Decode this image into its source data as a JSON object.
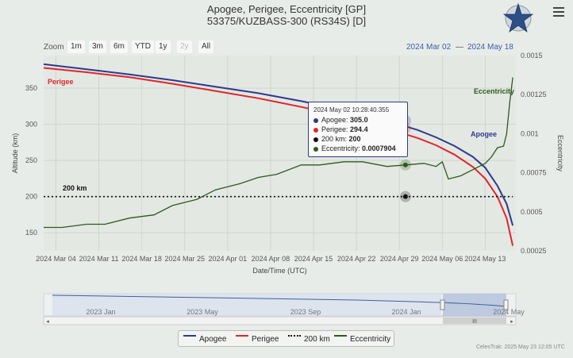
{
  "header": {
    "title_line1": "Apogee, Perigee, Eccentricity [GP]",
    "title_line2": "53375/KUZBASS-300 (RS34S) [D]"
  },
  "zoom": {
    "label": "Zoom",
    "buttons": [
      "1m",
      "3m",
      "6m",
      "YTD",
      "1y",
      "2y",
      "All"
    ]
  },
  "range": {
    "from": "2024 Mar 02",
    "to": "2024 May 18"
  },
  "tooltip": {
    "date": "2024 May 02 10:28:40.355",
    "apogee_label": "Apogee:",
    "apogee_value": "305.0",
    "perigee_label": "Perigee:",
    "perigee_value": "294.4",
    "ref_label": "200 km:",
    "ref_value": "200",
    "ecc_label": "Eccentricity:",
    "ecc_value": "0.0007904"
  },
  "navigator": {
    "labels": [
      "2023 Jan",
      "2023 May",
      "2023 Sep",
      "2024 Jan",
      "2024 May"
    ],
    "handle_label": "III"
  },
  "legend": [
    "Apogee",
    "Perigee",
    "200 km",
    "Eccentricity"
  ],
  "credit": "CelesTrak: 2025 May 23 12:05 UTC",
  "colors": {
    "apogee": "#2d3a8c",
    "perigee": "#e0262b",
    "ref": "#111111",
    "eccentricity": "#2e5a1c"
  },
  "chart_data": {
    "type": "line",
    "title": "Apogee, Perigee, Eccentricity [GP]",
    "subtitle": "53375/KUZBASS-300 (RS34S) [D]",
    "xlabel": "Date/Time (UTC)",
    "ylabel": "Altitude (km)",
    "y2label": "Eccentricity",
    "x_ticks": [
      "2024 Mar 04",
      "2024 Mar 11",
      "2024 Mar 18",
      "2024 Mar 25",
      "2024 Apr 01",
      "2024 Apr 08",
      "2024 Apr 15",
      "2024 Apr 22",
      "2024 Apr 29",
      "2024 May 06",
      "2024 May 13"
    ],
    "y_ticks": [
      150,
      200,
      250,
      300,
      350
    ],
    "y2_ticks": [
      "0.00025",
      "0.0005",
      "0.00075",
      "0.001",
      "0.00125",
      "0.0015"
    ],
    "ylim": [
      125,
      395
    ],
    "y2lim": [
      0.00025,
      0.0015
    ],
    "xlim_days": [
      0,
      77
    ],
    "series": [
      {
        "name": "Apogee",
        "axis": "left",
        "x": [
          0,
          7,
          14,
          21,
          28,
          35,
          42,
          49,
          56,
          61,
          64,
          67,
          70,
          72,
          74,
          75.5,
          76.5
        ],
        "y": [
          383,
          376,
          369,
          361,
          352,
          343,
          332,
          320,
          305,
          292,
          282,
          270,
          255,
          240,
          215,
          190,
          160
        ]
      },
      {
        "name": "Perigee",
        "axis": "left",
        "x": [
          0,
          7,
          14,
          21,
          28,
          35,
          42,
          49,
          56,
          61,
          64,
          67,
          70,
          72,
          74,
          75.5,
          76.5
        ],
        "y": [
          378,
          372,
          365,
          356,
          346,
          336,
          324,
          311,
          294,
          281,
          271,
          258,
          241,
          225,
          200,
          170,
          132
        ]
      },
      {
        "name": "200 km",
        "axis": "left",
        "x": [
          0,
          76.5
        ],
        "y": [
          200,
          200
        ]
      },
      {
        "name": "Eccentricity",
        "axis": "right",
        "x": [
          0,
          3,
          7,
          10,
          14,
          18,
          21,
          25,
          28,
          32,
          35,
          38,
          42,
          45,
          49,
          52,
          56,
          59,
          62,
          64,
          65,
          66,
          68,
          70,
          72,
          73,
          74,
          75,
          75.5,
          76,
          76.5
        ],
        "y": [
          0.0004,
          0.0004,
          0.00042,
          0.00042,
          0.00046,
          0.00048,
          0.00054,
          0.00058,
          0.00064,
          0.00068,
          0.00072,
          0.00074,
          0.0008,
          0.0008,
          0.00082,
          0.00082,
          0.00079,
          0.0008,
          0.00081,
          0.00079,
          0.00082,
          0.00071,
          0.00073,
          0.00077,
          0.00081,
          0.00085,
          0.00091,
          0.00092,
          0.001,
          0.0012,
          0.00136
        ]
      }
    ],
    "labels": [
      "Apogee",
      "Perigee",
      "Eccentricity",
      "200 km"
    ],
    "tooltip_x": 59,
    "grid": true,
    "legend": "bottom"
  }
}
